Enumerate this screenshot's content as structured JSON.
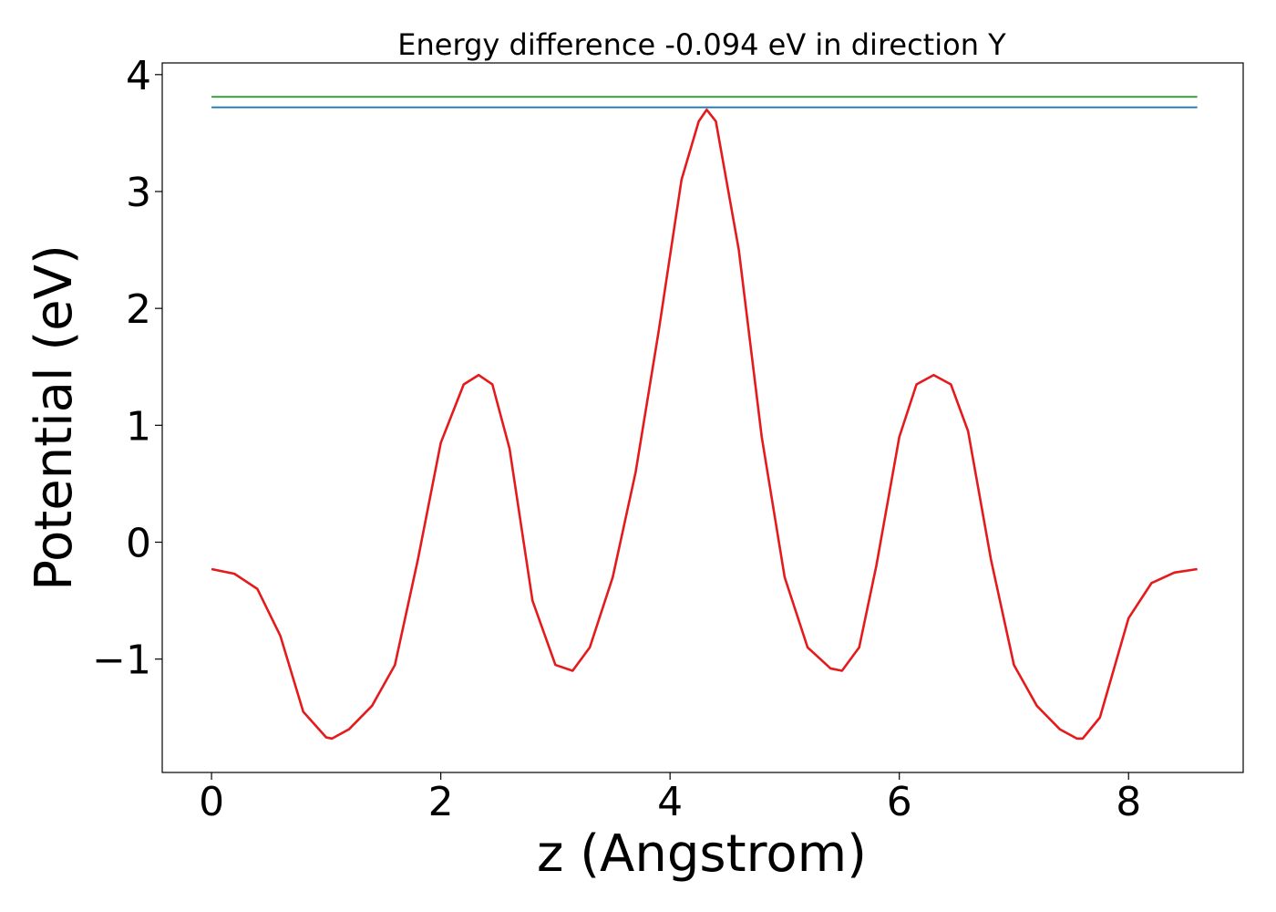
{
  "chart_data": {
    "type": "line",
    "title": "Energy difference -0.094 eV in direction Y",
    "xlabel": "z (Angstrom)",
    "ylabel": "Potential (eV)",
    "xlim": [
      -0.43,
      9.0
    ],
    "ylim": [
      -1.97,
      4.1
    ],
    "x_ticks": [
      0,
      2,
      4,
      6,
      8
    ],
    "y_ticks": [
      -1,
      0,
      1,
      2,
      3,
      4
    ],
    "x_tick_labels": [
      "0",
      "2",
      "4",
      "6",
      "8"
    ],
    "y_tick_labels": [
      "−1",
      "0",
      "1",
      "2",
      "3",
      "4"
    ],
    "grid": false,
    "legend": "none",
    "series": [
      {
        "color": "#2ca02c",
        "x": [
          0,
          8.6
        ],
        "y": [
          3.81,
          3.81
        ]
      },
      {
        "color": "#1f77b4",
        "x": [
          0,
          8.6
        ],
        "y": [
          3.72,
          3.72
        ]
      },
      {
        "color": "#e41a1c",
        "x": [
          0,
          0.2,
          0.4,
          0.6,
          0.8,
          1.0,
          1.05,
          1.2,
          1.4,
          1.6,
          1.8,
          2.0,
          2.2,
          2.33,
          2.45,
          2.6,
          2.8,
          3.0,
          3.15,
          3.3,
          3.5,
          3.7,
          3.9,
          4.1,
          4.25,
          4.32,
          4.4,
          4.6,
          4.8,
          5.0,
          5.2,
          5.4,
          5.5,
          5.65,
          5.8,
          6.0,
          6.15,
          6.3,
          6.45,
          6.6,
          6.8,
          7.0,
          7.2,
          7.4,
          7.55,
          7.6,
          7.75,
          8.0,
          8.2,
          8.4,
          8.6
        ],
        "y": [
          -0.23,
          -0.27,
          -0.4,
          -0.8,
          -1.45,
          -1.67,
          -1.68,
          -1.6,
          -1.4,
          -1.05,
          -0.15,
          0.85,
          1.35,
          1.43,
          1.35,
          0.8,
          -0.5,
          -1.05,
          -1.1,
          -0.9,
          -0.3,
          0.6,
          1.8,
          3.1,
          3.6,
          3.7,
          3.6,
          2.5,
          0.9,
          -0.3,
          -0.9,
          -1.08,
          -1.1,
          -0.9,
          -0.2,
          0.9,
          1.35,
          1.43,
          1.35,
          0.95,
          -0.15,
          -1.05,
          -1.4,
          -1.6,
          -1.68,
          -1.68,
          -1.5,
          -0.65,
          -0.35,
          -0.26,
          -0.23
        ]
      }
    ]
  }
}
